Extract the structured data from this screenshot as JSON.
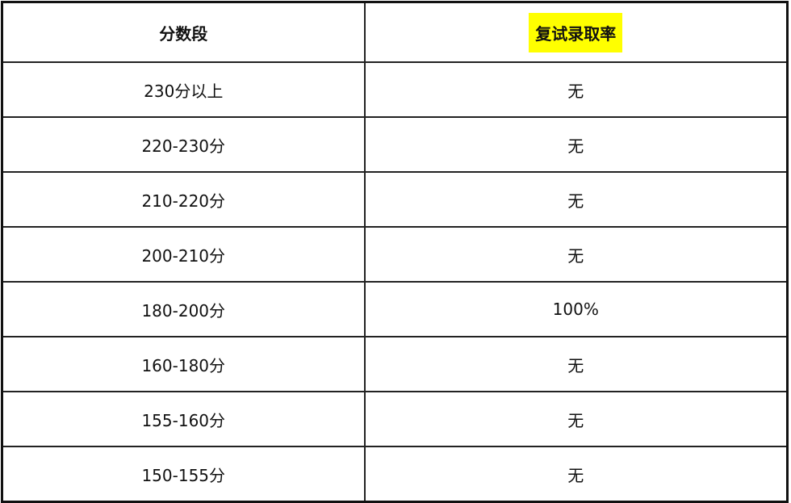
{
  "headers": [
    "分数段",
    "复试录取率"
  ],
  "highlight_color": "#ffff00",
  "rows": [
    [
      "230分以上",
      "无"
    ],
    [
      "220-230分",
      "无"
    ],
    [
      "210-220分",
      "无"
    ],
    [
      "200-210分",
      "无"
    ],
    [
      "180-200分",
      "100%"
    ],
    [
      "160-180分",
      "无"
    ],
    [
      "155-160分",
      "无"
    ],
    [
      "150-155分",
      "无"
    ]
  ]
}
